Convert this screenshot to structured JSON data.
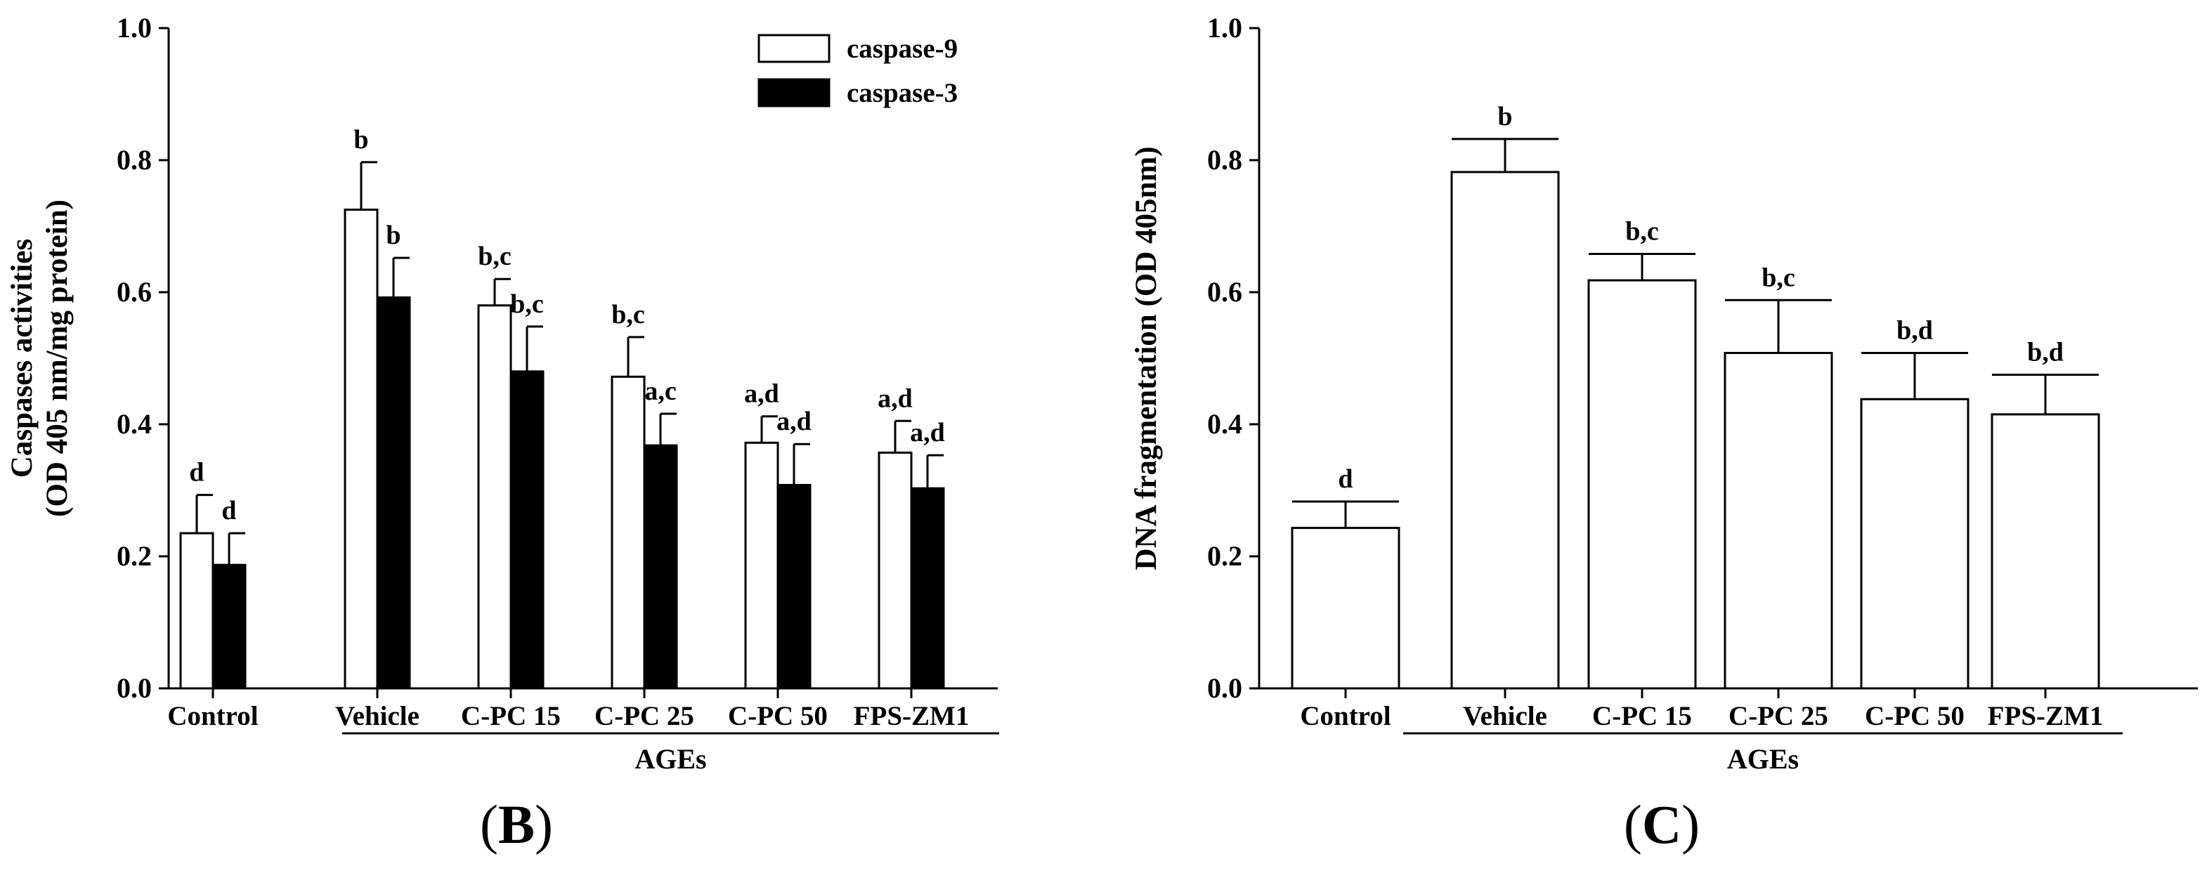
{
  "chart_data": [
    {
      "type": "bar",
      "panel": "B",
      "categories": [
        "Control",
        "Vehicle",
        "C-PC 15",
        "C-PC 25",
        "C-PC 50",
        "FPS-ZM1"
      ],
      "group_label": "AGEs",
      "group_start_category": "Vehicle",
      "ylabel_line1": "Caspases activities",
      "ylabel_line2": "(OD 405 nm/mg protein)",
      "ylim": [
        0,
        1.0
      ],
      "yticks": [
        "0.0",
        "0.2",
        "0.4",
        "0.6",
        "0.8",
        "1.0"
      ],
      "series": [
        {
          "name": "caspase-9",
          "fill": "#ffffff",
          "values": [
            0.235,
            0.725,
            0.58,
            0.472,
            0.372,
            0.357
          ],
          "errors": [
            0.058,
            0.072,
            0.04,
            0.06,
            0.04,
            0.048
          ],
          "sig": [
            "d",
            "b",
            "b,c",
            "b,c",
            "a,d",
            "a,d"
          ]
        },
        {
          "name": "caspase-3",
          "fill": "#000000",
          "values": [
            0.187,
            0.592,
            0.48,
            0.368,
            0.308,
            0.303
          ],
          "errors": [
            0.048,
            0.06,
            0.068,
            0.048,
            0.062,
            0.05
          ],
          "sig": [
            "d",
            "b",
            "b,c",
            "a,c",
            "a,d",
            "a,d"
          ]
        }
      ],
      "legend": "top-right"
    },
    {
      "type": "bar",
      "panel": "C",
      "categories": [
        "Control",
        "Vehicle",
        "C-PC 15",
        "C-PC 25",
        "C-PC 50",
        "FPS-ZM1"
      ],
      "group_label": "AGEs",
      "group_start_category": "Vehicle",
      "ylabel": "DNA fragmentation (OD 405nm)",
      "ylim": [
        0,
        1.0
      ],
      "yticks": [
        "0.0",
        "0.2",
        "0.4",
        "0.6",
        "0.8",
        "1.0"
      ],
      "series": [
        {
          "name": "DNA fragmentation",
          "fill": "#ffffff",
          "values": [
            0.243,
            0.782,
            0.618,
            0.508,
            0.438,
            0.415
          ],
          "errors": [
            0.04,
            0.05,
            0.04,
            0.08,
            0.07,
            0.06
          ],
          "sig": [
            "d",
            "b",
            "b,c",
            "b,c",
            "b,d",
            "b,d"
          ]
        }
      ]
    }
  ],
  "panels": {
    "B": "B",
    "C": "C"
  }
}
